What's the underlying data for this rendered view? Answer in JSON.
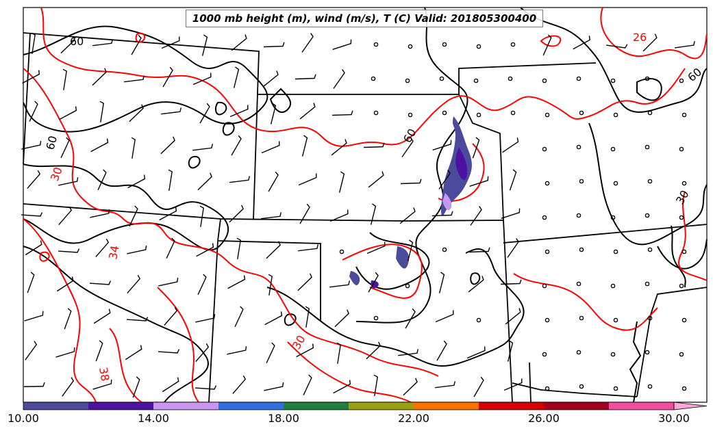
{
  "title": "1000 mb height (m), wind (m/s), T (C) Valid: 201805300400",
  "colorbar": {
    "ticks": [
      "10.00",
      "14.00",
      "18.00",
      "22.00",
      "26.00",
      "30.00"
    ],
    "colors": [
      "#4b4b9b",
      "#4d13a0",
      "#c896f0",
      "#2f6fe0",
      "#1f8040",
      "#9aa012",
      "#ff7000",
      "#d60000",
      "#a3001e",
      "#f04ca0",
      "#ffa6d6"
    ]
  },
  "contour_labels": {
    "temperature": [
      "26",
      "30",
      "34",
      "38",
      "30"
    ],
    "height": [
      "60",
      "60",
      "60",
      "60",
      "30"
    ]
  },
  "colors": {
    "height_contour": "#000000",
    "temp_contour": "#ff0000",
    "border": "#000000"
  }
}
